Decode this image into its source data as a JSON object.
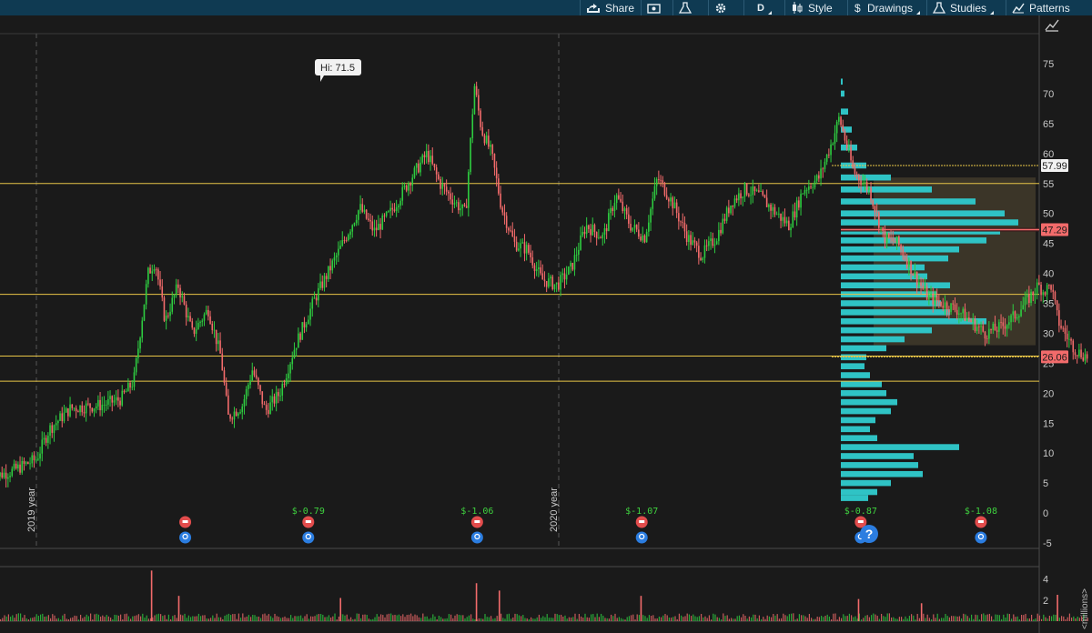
{
  "toolbar": {
    "share": "Share",
    "interval": "D",
    "style": "Style",
    "drawings": "Drawings",
    "studies": "Studies",
    "patterns": "Patterns"
  },
  "icons": [
    "share-icon",
    "snapshot-icon",
    "flask-icon",
    "gear-icon",
    "candle-icon",
    "dollar-icon",
    "flask-study-icon",
    "patterns-icon",
    "chart-expand-icon"
  ],
  "colors": {
    "up": "#2ecc40",
    "down": "#f26b6b",
    "level_line": "#e8c547",
    "profile": "#2fc3c5",
    "toolbar": "#0f3a52",
    "background": "#1a1a1a"
  },
  "chart_data": [
    {
      "type": "line",
      "title": "",
      "ylim": [
        -5,
        78
      ],
      "yticks": [
        75,
        70,
        65,
        60,
        55,
        50,
        45,
        40,
        35,
        30,
        25,
        20,
        15,
        10,
        5,
        0,
        -5
      ],
      "year_labels": [
        "2019 year",
        "2020 year"
      ],
      "high_label": "Hi: 71.5",
      "price_badges": [
        {
          "value": 57.99,
          "label": "57.99"
        },
        {
          "value": 47.29,
          "label": "47.29"
        },
        {
          "value": 26.06,
          "label": "26.06"
        }
      ],
      "horizontal_levels": [
        55,
        36.5,
        26.2,
        22
      ],
      "price_path": [
        [
          "2018-12-01",
          6
        ],
        [
          "2018-12-15",
          7
        ],
        [
          "2019-01-01",
          9
        ],
        [
          "2019-01-10",
          14
        ],
        [
          "2019-01-25",
          17.5
        ],
        [
          "2019-02-15",
          18
        ],
        [
          "2019-03-01",
          19
        ],
        [
          "2019-03-10",
          22
        ],
        [
          "2019-03-20",
          40
        ],
        [
          "2019-03-25",
          42
        ],
        [
          "2019-04-01",
          32
        ],
        [
          "2019-04-10",
          38
        ],
        [
          "2019-04-20",
          30
        ],
        [
          "2019-05-01",
          34
        ],
        [
          "2019-05-10",
          26
        ],
        [
          "2019-05-15",
          16
        ],
        [
          "2019-05-25",
          18
        ],
        [
          "2019-06-01",
          24
        ],
        [
          "2019-06-10",
          17
        ],
        [
          "2019-06-20",
          20
        ],
        [
          "2019-07-01",
          28
        ],
        [
          "2019-07-15",
          36
        ],
        [
          "2019-08-01",
          44
        ],
        [
          "2019-08-15",
          51
        ],
        [
          "2019-08-25",
          47
        ],
        [
          "2019-09-05",
          50
        ],
        [
          "2019-09-20",
          56
        ],
        [
          "2019-10-01",
          60
        ],
        [
          "2019-10-10",
          55
        ],
        [
          "2019-10-20",
          52
        ],
        [
          "2019-10-28",
          50
        ],
        [
          "2019-11-03",
          71.5
        ],
        [
          "2019-11-08",
          64
        ],
        [
          "2019-11-15",
          60
        ],
        [
          "2019-11-22",
          51
        ],
        [
          "2019-12-01",
          45
        ],
        [
          "2019-12-10",
          44
        ],
        [
          "2019-12-20",
          39
        ],
        [
          "2019-12-31",
          38
        ],
        [
          "2020-01-10",
          41
        ],
        [
          "2020-01-20",
          48
        ],
        [
          "2020-02-01",
          46
        ],
        [
          "2020-02-10",
          53
        ],
        [
          "2020-02-20",
          48
        ],
        [
          "2020-03-01",
          46
        ],
        [
          "2020-03-10",
          56
        ],
        [
          "2020-03-20",
          52
        ],
        [
          "2020-03-31",
          46
        ],
        [
          "2020-04-10",
          43
        ],
        [
          "2020-04-20",
          46
        ],
        [
          "2020-05-01",
          52
        ],
        [
          "2020-05-10",
          54
        ],
        [
          "2020-05-20",
          53
        ],
        [
          "2020-06-01",
          50
        ],
        [
          "2020-06-10",
          48
        ],
        [
          "2020-06-20",
          54
        ],
        [
          "2020-07-01",
          56
        ],
        [
          "2020-07-10",
          62
        ],
        [
          "2020-07-15",
          66
        ],
        [
          "2020-07-25",
          57
        ],
        [
          "2020-08-05",
          54
        ],
        [
          "2020-08-15",
          46
        ],
        [
          "2020-08-25",
          45
        ],
        [
          "2020-09-05",
          40
        ],
        [
          "2020-09-15",
          36
        ],
        [
          "2020-09-25",
          35
        ],
        [
          "2020-10-05",
          34
        ],
        [
          "2020-10-15",
          32
        ],
        [
          "2020-10-25",
          30
        ],
        [
          "2020-11-05",
          31
        ],
        [
          "2020-11-15",
          33
        ],
        [
          "2020-11-25",
          36
        ],
        [
          "2020-12-01",
          38
        ],
        [
          "2020-12-05",
          37
        ],
        [
          "2020-12-10",
          38
        ],
        [
          "2020-12-15",
          32
        ],
        [
          "2020-12-22",
          29
        ],
        [
          "2020-12-28",
          27
        ],
        [
          "2021-01-05",
          26
        ]
      ],
      "volume_profile_levels": [
        {
          "price": 72,
          "volume": 2
        },
        {
          "price": 70,
          "volume": 4
        },
        {
          "price": 67,
          "volume": 8
        },
        {
          "price": 64,
          "volume": 12
        },
        {
          "price": 61,
          "volume": 18
        },
        {
          "price": 58,
          "volume": 28
        },
        {
          "price": 56,
          "volume": 55
        },
        {
          "price": 54,
          "volume": 100
        },
        {
          "price": 52,
          "volume": 148
        },
        {
          "price": 50,
          "volume": 180
        },
        {
          "price": 48.5,
          "volume": 195
        },
        {
          "price": 47,
          "volume": 175
        },
        {
          "price": 45.5,
          "volume": 160
        },
        {
          "price": 44,
          "volume": 130
        },
        {
          "price": 42.5,
          "volume": 118
        },
        {
          "price": 41,
          "volume": 92
        },
        {
          "price": 39.5,
          "volume": 95
        },
        {
          "price": 38,
          "volume": 120
        },
        {
          "price": 36.5,
          "volume": 105
        },
        {
          "price": 35,
          "volume": 110
        },
        {
          "price": 33.5,
          "volume": 120
        },
        {
          "price": 32,
          "volume": 160
        },
        {
          "price": 30.5,
          "volume": 100
        },
        {
          "price": 29,
          "volume": 70
        },
        {
          "price": 27.5,
          "volume": 50
        },
        {
          "price": 26,
          "volume": 28
        },
        {
          "price": 24.5,
          "volume": 26
        },
        {
          "price": 23,
          "volume": 32
        },
        {
          "price": 21.5,
          "volume": 45
        },
        {
          "price": 20,
          "volume": 50
        },
        {
          "price": 18.5,
          "volume": 62
        },
        {
          "price": 17,
          "volume": 55
        },
        {
          "price": 15.5,
          "volume": 38
        },
        {
          "price": 14,
          "volume": 32
        },
        {
          "price": 12.5,
          "volume": 40
        },
        {
          "price": 11,
          "volume": 130
        },
        {
          "price": 9.5,
          "volume": 80
        },
        {
          "price": 8,
          "volume": 85
        },
        {
          "price": 6.5,
          "volume": 90
        },
        {
          "price": 5,
          "volume": 55
        },
        {
          "price": 3.5,
          "volume": 40
        },
        {
          "price": 2.5,
          "volume": 30
        }
      ],
      "earnings_markers": [
        {
          "date": "2019-04-15",
          "eps_label": ""
        },
        {
          "date": "2019-07-10",
          "eps_label": "$-0.79"
        },
        {
          "date": "2019-11-05",
          "eps_label": "$-1.06"
        },
        {
          "date": "2020-02-28",
          "eps_label": "$-1.07"
        },
        {
          "date": "2020-07-30",
          "eps_label": "$-0.87"
        },
        {
          "date": "2020-10-22",
          "eps_label": "$-1.08"
        }
      ],
      "help_label": "?"
    },
    {
      "type": "bar",
      "title": "",
      "ylabel": "<millions>",
      "ylim": [
        0,
        5
      ],
      "yticks": [
        4,
        2
      ],
      "volume_spikes": [
        [
          "2019-03-22",
          4.8
        ],
        [
          "2019-04-10",
          2.4
        ],
        [
          "2019-08-01",
          2.2
        ],
        [
          "2019-11-04",
          3.6
        ],
        [
          "2019-11-20",
          2.9
        ],
        [
          "2020-02-27",
          2.4
        ],
        [
          "2020-07-28",
          2.1
        ],
        [
          "2020-09-10",
          1.7
        ],
        [
          "2020-12-14",
          2.5
        ]
      ]
    }
  ]
}
